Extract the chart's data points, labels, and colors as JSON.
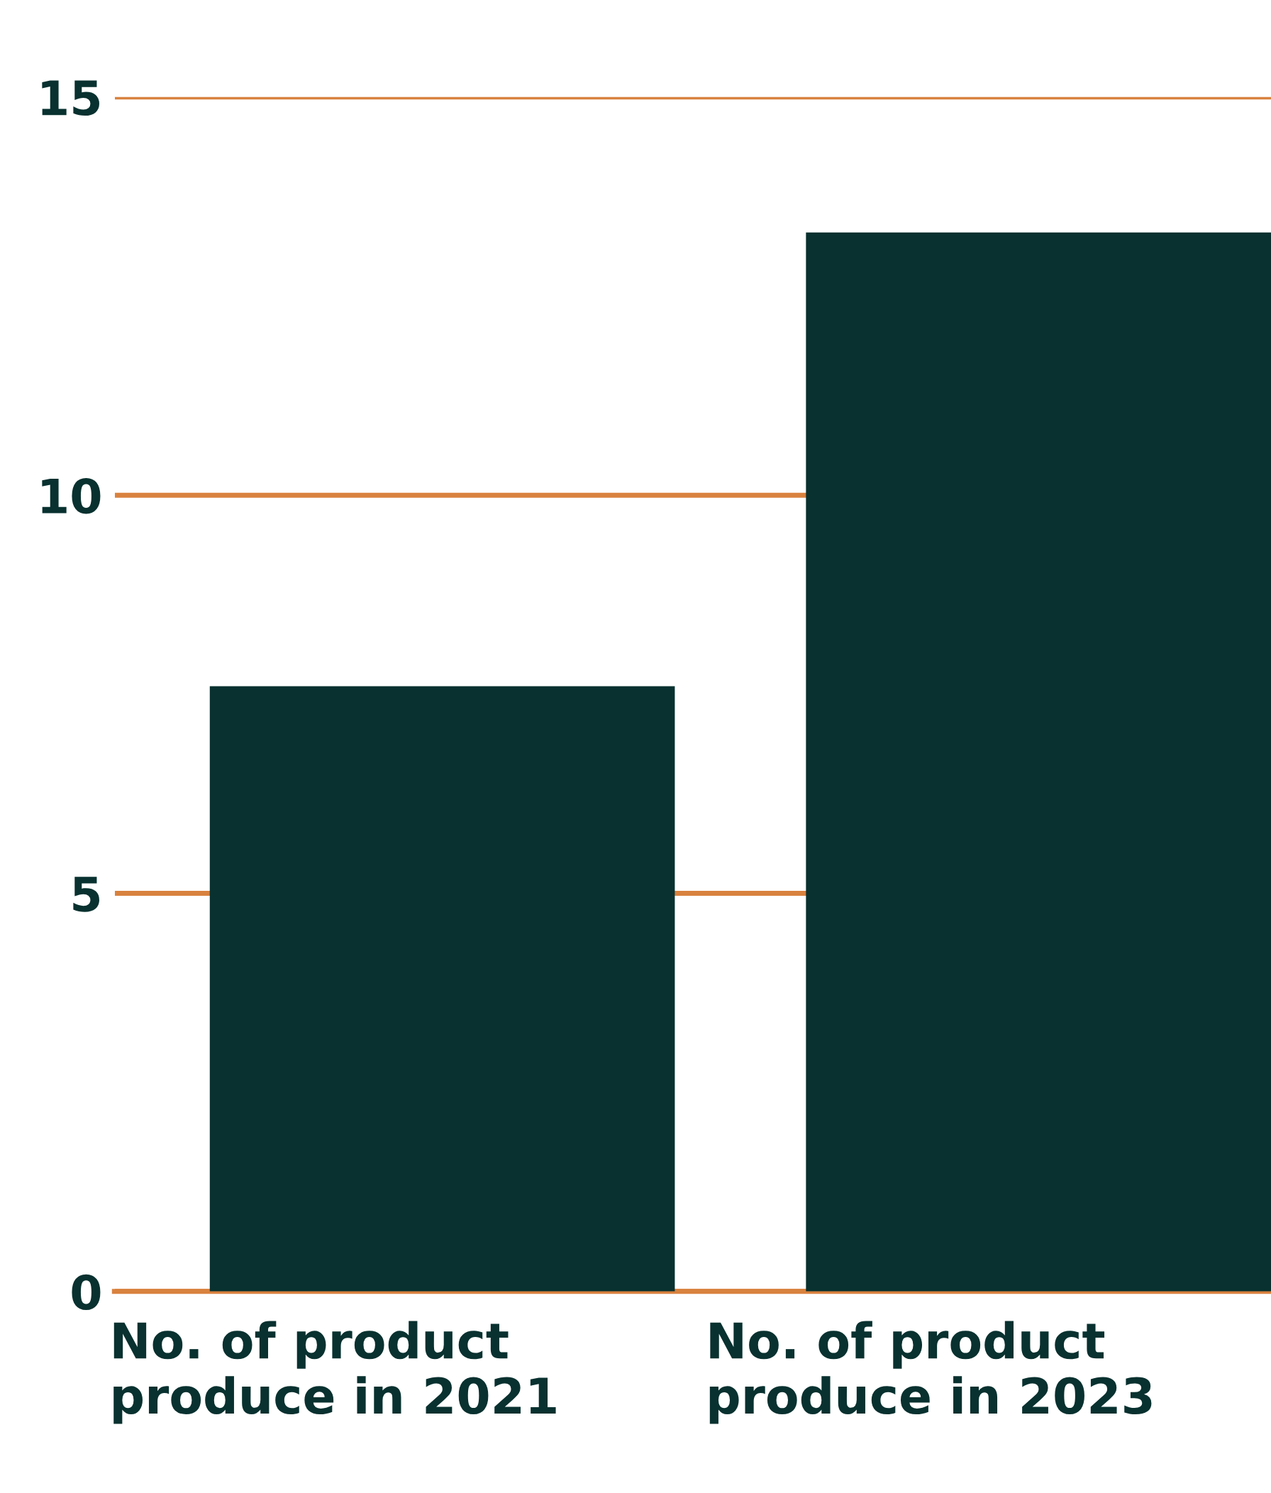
{
  "chart_data": {
    "type": "bar",
    "categories": [
      "No. of product\nproduce in 2021",
      "No. of product\nproduce in 2023"
    ],
    "values": [
      7.6,
      13.3
    ],
    "color": "#08312f",
    "ylim": [
      0,
      15
    ],
    "yticks": [
      0,
      5,
      10,
      15
    ],
    "grid": "y"
  }
}
